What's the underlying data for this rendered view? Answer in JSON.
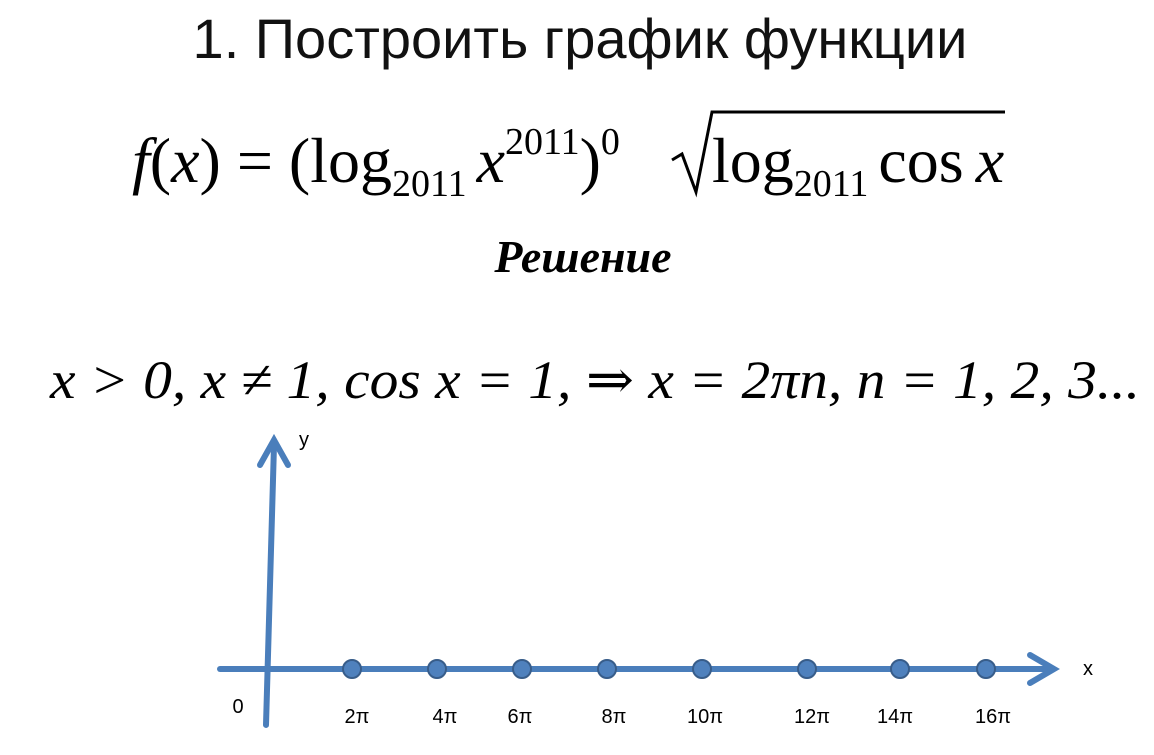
{
  "title": "1. Построить график функции",
  "formula": {
    "f": "f",
    "open": "(",
    "x": "x",
    "mid": ") = (log",
    "base1": "2011",
    "arg1": "x",
    "exp1": "2011",
    "close": ")",
    "exp2": "0",
    "log2": "log",
    "base2": "2011",
    "cos": "cos",
    "x2": "x"
  },
  "solution_label": "Решение",
  "condition": "x > 0, x ≠ 1, cos x = 1, ⇒ x = 2πn, n = 1, 2, 3...",
  "graph": {
    "origin_label": "0",
    "y_label": "y",
    "x_label": "x",
    "point_labels": [
      "2π",
      "4π",
      "6π",
      "8π",
      "10π",
      "12π",
      "14π",
      "16π"
    ]
  }
}
